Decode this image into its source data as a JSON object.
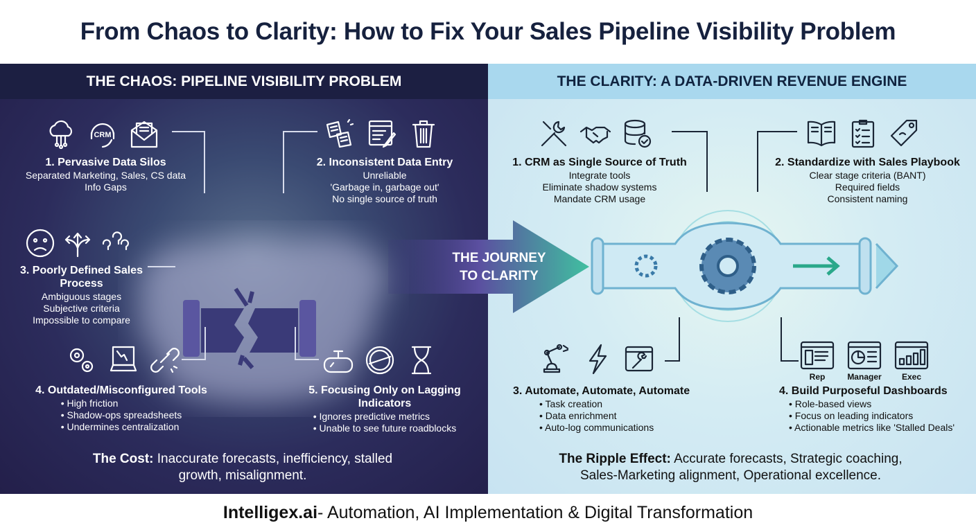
{
  "title": "From Chaos to Clarity: How to Fix Your Sales Pipeline Visibility Problem",
  "chaos": {
    "header": "THE CHAOS: PIPELINE VISIBILITY PROBLEM",
    "items": [
      {
        "title": "1. Pervasive Data Silos",
        "lines": [
          "Separated Marketing, Sales, CS data",
          "Info Gaps"
        ],
        "icons": [
          "cloud-network-icon",
          "crm-headset-icon",
          "envelope-icon"
        ],
        "icon_text": "CRM"
      },
      {
        "title": "2. Inconsistent Data Entry",
        "lines": [
          "Unreliable",
          "'Garbage in, garbage out'",
          "No single source of truth"
        ],
        "icons": [
          "scattered-documents-icon",
          "form-edit-icon",
          "trash-icon"
        ]
      },
      {
        "title": "3. Poorly Defined Sales Process",
        "lines": [
          "Ambiguous stages",
          "Subjective criteria",
          "Impossible to compare"
        ],
        "icons": [
          "confused-face-icon",
          "diverging-arrows-icon",
          "question-marks-icon"
        ]
      },
      {
        "title": "4. Outdated/Misconfigured Tools",
        "bullets": [
          "High friction",
          "Shadow-ops spreadsheets",
          "Undermines centralization"
        ],
        "icons": [
          "gears-icon",
          "broken-computer-icon",
          "broken-link-icon"
        ]
      },
      {
        "title": "5. Focusing Only on Lagging Indicators",
        "bullets": [
          "Ignores predictive metrics",
          "Unable to see future roadblocks"
        ],
        "icons": [
          "rearview-mirror-icon",
          "stamp-icon",
          "hourglass-icon"
        ]
      }
    ],
    "summary_label": "The Cost:",
    "summary_text": " Inaccurate forecasts, inefficiency, stalled growth, misalignment."
  },
  "journey": {
    "line1": "THE JOURNEY",
    "line2": "TO CLARITY"
  },
  "clarity": {
    "header": "THE CLARITY: A DATA-DRIVEN REVENUE ENGINE",
    "items": [
      {
        "title": "1. CRM as Single Source of Truth",
        "lines": [
          "Integrate tools",
          "Eliminate shadow systems",
          "Mandate CRM usage"
        ],
        "icons": [
          "tools-icon",
          "handshake-icon",
          "database-check-icon"
        ]
      },
      {
        "title": "2. Standardize with Sales Playbook",
        "lines": [
          "Clear stage criteria (BANT)",
          "Required fields",
          "Consistent naming"
        ],
        "icons": [
          "open-book-icon",
          "checklist-icon",
          "tag-icon"
        ]
      },
      {
        "title": "3. Automate, Automate, Automate",
        "bullets": [
          "Task creation",
          "Data enrichment",
          "Auto-log communications"
        ],
        "icons": [
          "robot-arm-icon",
          "lightning-icon",
          "browser-wrench-icon"
        ]
      },
      {
        "title": "4. Build Purposeful Dashboards",
        "bullets": [
          "Role-based views",
          "Focus on leading indicators",
          "Actionable metrics like 'Stalled Deals'"
        ],
        "dashboards": [
          "Rep",
          "Manager",
          "Exec"
        ]
      }
    ],
    "summary_label": "The Ripple Effect:",
    "summary_text": " Accurate forecasts, Strategic coaching, Sales-Marketing alignment, Operational excellence."
  },
  "footer": {
    "brand": "Intelligex.ai",
    "tagline": " - Automation, AI Implementation & Digital Transformation"
  },
  "colors": {
    "title": "#16213e",
    "chaos_bg": "#2c2c5c",
    "clarity_bg": "#d4ecf3",
    "journey_arrow": "#5aa0a8"
  }
}
